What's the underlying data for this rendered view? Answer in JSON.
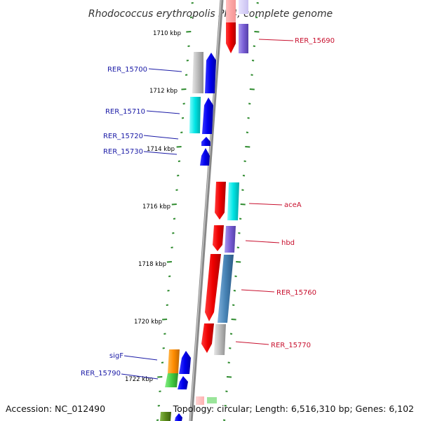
{
  "title": "Rhodococcus erythropolis PR4, complete genome",
  "footer": {
    "accession": "Accession: NC_012490",
    "topology": "Topology: circular; Length: 6,516,310 bp; Genes: 6,102"
  },
  "kbp_labels": [
    "1710 kbp",
    "1712 kbp",
    "1714 kbp",
    "1716 kbp",
    "1718 kbp",
    "1720 kbp",
    "1722 kbp"
  ],
  "gene_labels": {
    "left": [
      "RER_15700",
      "RER_15710",
      "RER_15720",
      "RER_15730",
      "sigF",
      "RER_15790"
    ],
    "right": [
      "RER_15690",
      "aceA",
      "hbd",
      "RER_15760",
      "RER_15770"
    ]
  },
  "colors": {
    "backbone": "#7a7a7a",
    "tick": "#2e8b2e",
    "left_label": "#1a1aa6",
    "right_label": "#c8102e",
    "gene_red": "#ff0000",
    "gene_blue": "#0000ee",
    "gene_cyan": "#00e5e5",
    "gene_gray": "#bbbbbb",
    "gene_purple": "#7a5fd6",
    "gene_steel": "#4682b4",
    "gene_orange": "#ff8c00",
    "gene_green": "#44cc44",
    "gene_olive": "#5a8a1a"
  }
}
